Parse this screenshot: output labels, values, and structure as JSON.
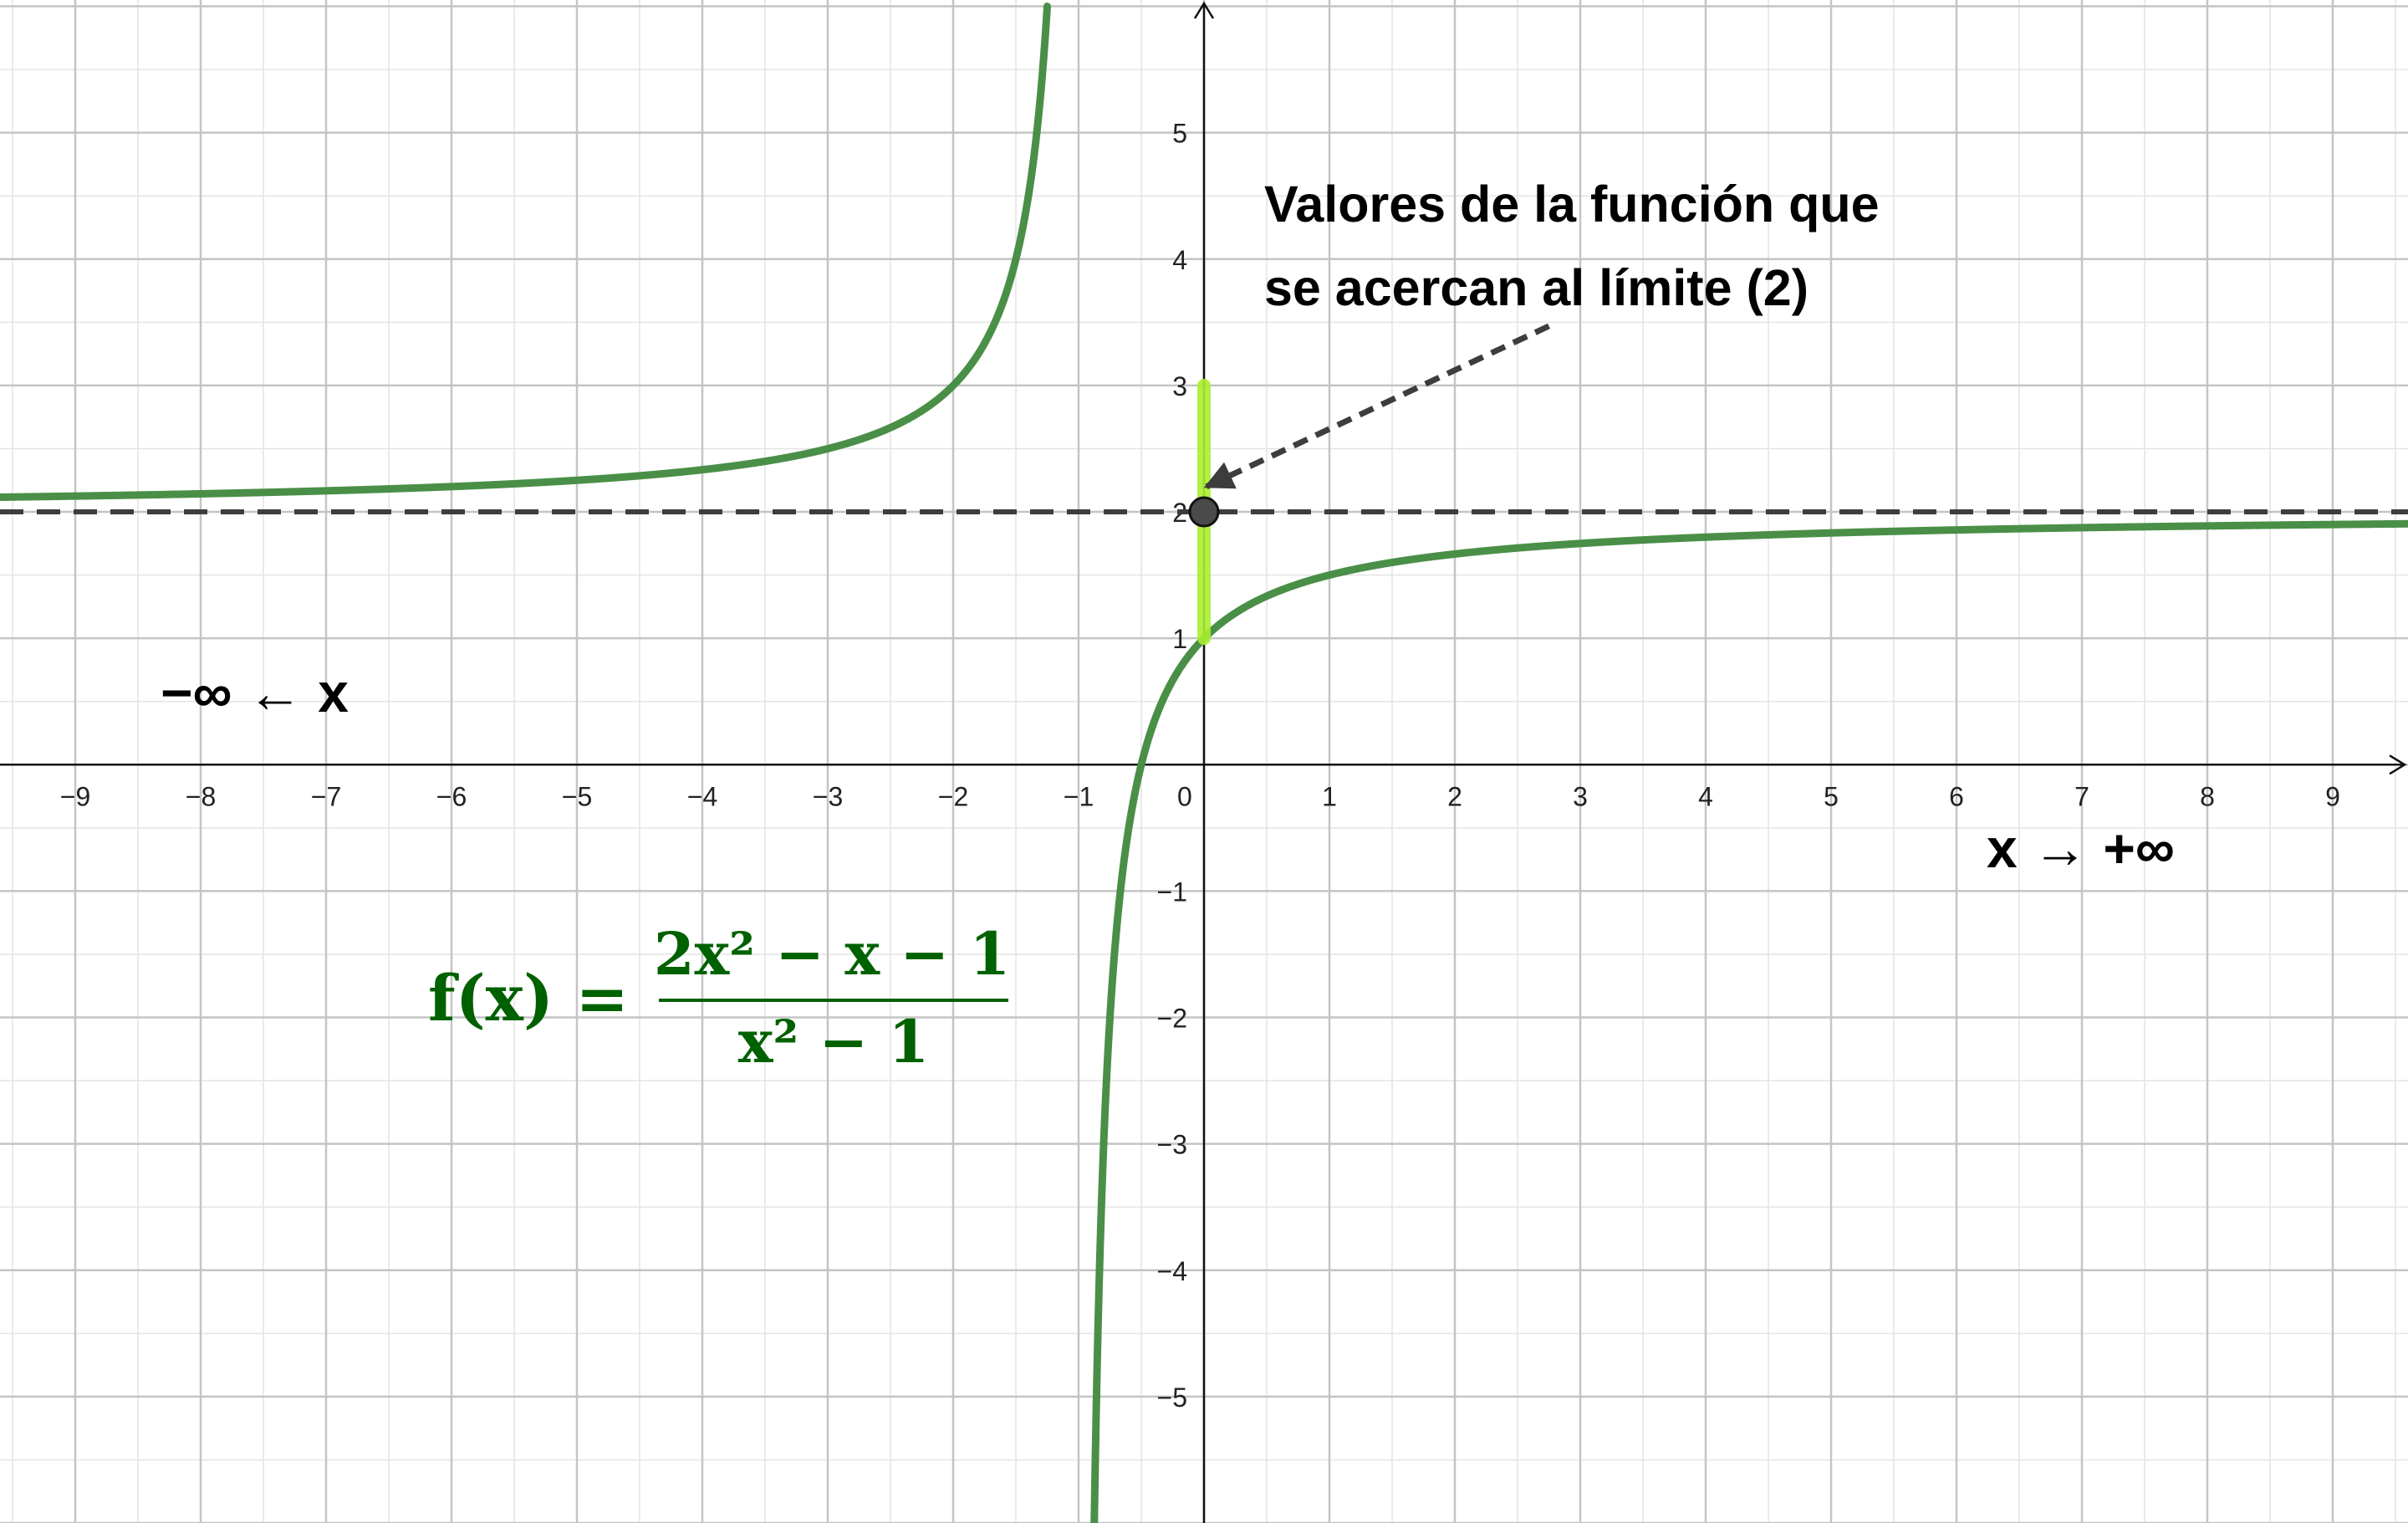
{
  "chart_data": {
    "type": "line",
    "title": "",
    "xlabel": "",
    "ylabel": "",
    "xlim": [
      -9.6,
      9.6
    ],
    "ylim": [
      -6.0,
      6.05
    ],
    "grid": true,
    "x_ticks": [
      "−9",
      "−8",
      "−7",
      "−6",
      "−5",
      "−4",
      "−3",
      "−2",
      "−1",
      "0",
      "1",
      "2",
      "3",
      "4",
      "5",
      "6",
      "7",
      "8",
      "9"
    ],
    "y_ticks": [
      {
        "value": 5,
        "label": "5"
      },
      {
        "value": 4,
        "label": "4"
      },
      {
        "value": 3,
        "label": "3"
      },
      {
        "value": 2,
        "label": "2"
      },
      {
        "value": 1,
        "label": "1"
      },
      {
        "value": -1,
        "label": "−1"
      },
      {
        "value": -2,
        "label": "−2"
      },
      {
        "value": -3,
        "label": "−3"
      },
      {
        "value": -4,
        "label": "−4"
      },
      {
        "value": -5,
        "label": "−5"
      }
    ],
    "series": [
      {
        "function": "(2x^2 - x - 1)/(x^2 - 1)",
        "color": "#4a8f47",
        "branches": [
          {
            "x_from": -9.6,
            "x_to": -1.25
          },
          {
            "x_from": -0.92,
            "x_to": 9.6
          }
        ]
      }
    ],
    "asymptote": {
      "y": 2,
      "style": "dashed",
      "color": "#3d3d3d"
    },
    "limit_point": {
      "x": 0,
      "y": 2,
      "color": "#4a4a4a"
    },
    "highlight_segment": {
      "x": 0,
      "y_from": 1,
      "y_to": 3,
      "color": "#a8f030"
    },
    "annotation": {
      "lines": [
        "Valores de la función que",
        "se acercan al límite (2)"
      ],
      "arrow_tail": {
        "x": 2.75,
        "y": 3.47
      },
      "arrow_head": {
        "x": 0.02,
        "y": 2.2
      }
    },
    "left_label": "−∞ ← x",
    "right_label": "x → +∞",
    "formula": {
      "lhs": "f(x) =",
      "numerator": "2x² − x − 1",
      "denominator": "x² − 1"
    }
  }
}
